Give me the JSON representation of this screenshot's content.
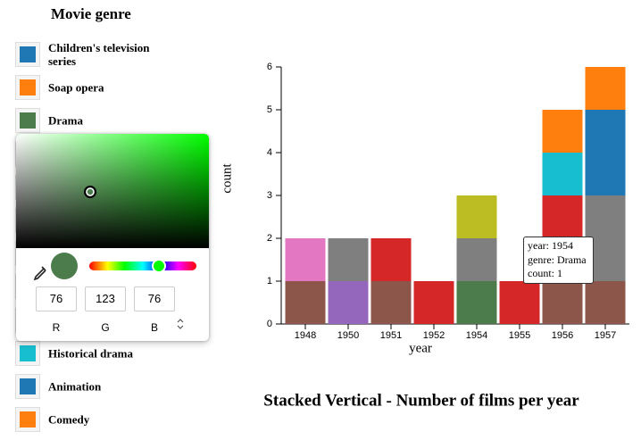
{
  "legend_title": "Movie genre",
  "chart_data": {
    "type": "bar",
    "stacked": true,
    "title": "Stacked Vertical - Number of films per year",
    "x_label": "year",
    "y_label": "count",
    "categories": [
      "1948",
      "1950",
      "1951",
      "1952",
      "1954",
      "1955",
      "1956",
      "1957"
    ],
    "series": [
      {
        "name": "Children's television series",
        "color": "#1f77b4",
        "values": [
          0,
          0,
          0,
          0,
          0,
          0,
          0,
          0
        ]
      },
      {
        "name": "Soap opera",
        "color": "#ff7f0e",
        "values": [
          0,
          0,
          0,
          0,
          0,
          0,
          0,
          0
        ]
      },
      {
        "name": "Drama",
        "color": "#4c7b4c",
        "values": [
          0,
          0,
          0,
          0,
          1,
          0,
          0,
          0
        ]
      },
      {
        "color": "#8c564b",
        "values": [
          1,
          0,
          1,
          0,
          0,
          0,
          1,
          1
        ]
      },
      {
        "color": "#9467bd",
        "values": [
          0,
          1,
          0,
          0,
          0,
          0,
          0,
          0
        ]
      },
      {
        "color": "#d62728",
        "values": [
          0,
          0,
          1,
          1,
          0,
          1,
          2,
          0
        ]
      },
      {
        "color": "#7f7f7f",
        "values": [
          0,
          1,
          0,
          0,
          1,
          0,
          0,
          2
        ]
      },
      {
        "color": "#e377c2",
        "values": [
          1,
          0,
          0,
          0,
          0,
          0,
          0,
          0
        ]
      },
      {
        "color": "#bcbd22",
        "values": [
          0,
          0,
          0,
          0,
          1,
          0,
          0,
          0
        ]
      },
      {
        "name": "Historical drama",
        "color": "#17becf",
        "values": [
          0,
          0,
          0,
          0,
          0,
          0,
          1,
          0
        ]
      },
      {
        "name": "Animation",
        "color": "#1f77b4",
        "values": [
          0,
          0,
          0,
          0,
          0,
          0,
          0,
          2
        ]
      },
      {
        "name": "Comedy",
        "color": "#ff7f0e",
        "values": [
          0,
          0,
          0,
          0,
          0,
          0,
          1,
          1
        ]
      }
    ],
    "ylim": [
      0,
      6
    ],
    "yticks": [
      0,
      1,
      2,
      3,
      4,
      5,
      6
    ],
    "grid": false
  },
  "tooltip": {
    "lines": [
      "year: 1954",
      "genre: Drama",
      "count: 1"
    ]
  },
  "color_picker": {
    "r": 76,
    "g": 123,
    "b": 76,
    "labels": [
      "R",
      "G",
      "B"
    ]
  }
}
